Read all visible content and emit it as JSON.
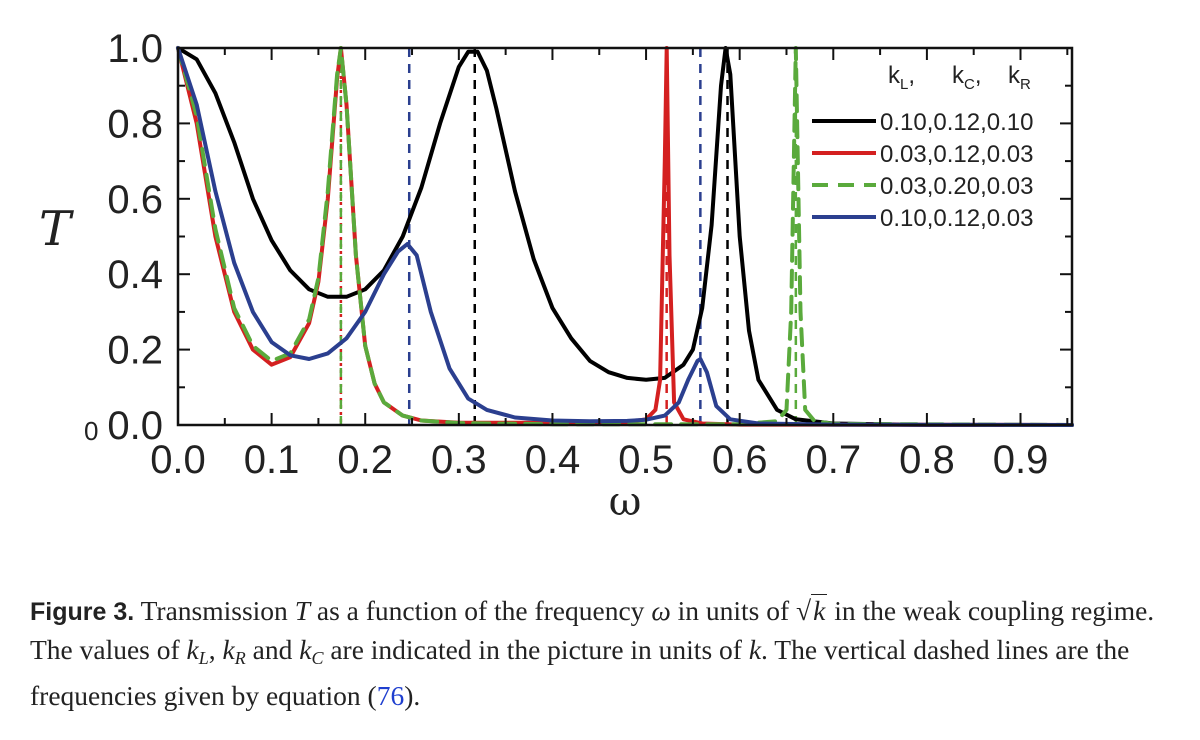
{
  "chart_data": {
    "type": "line",
    "title": "",
    "xlabel": "ω",
    "ylabel": "T",
    "xlim": [
      0.0,
      0.955
    ],
    "ylim": [
      0.0,
      1.0
    ],
    "x_ticks": [
      "0.0",
      "0.1",
      "0.2",
      "0.3",
      "0.4",
      "0.5",
      "0.6",
      "0.7",
      "0.8",
      "0.9"
    ],
    "y_ticks": [
      "0.0",
      "0.2",
      "0.4",
      "0.6",
      "0.8",
      "1.0"
    ],
    "origin_label": "0",
    "legend_header": {
      "kL": "k",
      "kL_sub": "L",
      "kC": "k",
      "kC_sub": "C",
      "kR": "k",
      "kR_sub": "R"
    },
    "legend_position": "top-right",
    "series": [
      {
        "name": "0.10,0.12,0.10",
        "color": "#000000",
        "dash": "solid",
        "x": [
          0.0,
          0.02,
          0.04,
          0.06,
          0.08,
          0.1,
          0.12,
          0.14,
          0.16,
          0.18,
          0.2,
          0.22,
          0.24,
          0.26,
          0.28,
          0.3,
          0.31,
          0.32,
          0.33,
          0.34,
          0.36,
          0.38,
          0.4,
          0.42,
          0.44,
          0.46,
          0.48,
          0.5,
          0.52,
          0.54,
          0.55,
          0.56,
          0.57,
          0.58,
          0.585,
          0.59,
          0.6,
          0.61,
          0.62,
          0.64,
          0.66,
          0.7,
          0.8,
          0.955
        ],
        "y": [
          1.0,
          0.97,
          0.88,
          0.75,
          0.6,
          0.49,
          0.41,
          0.36,
          0.34,
          0.34,
          0.36,
          0.41,
          0.5,
          0.63,
          0.8,
          0.95,
          0.99,
          0.99,
          0.94,
          0.84,
          0.62,
          0.44,
          0.31,
          0.23,
          0.17,
          0.14,
          0.125,
          0.12,
          0.125,
          0.16,
          0.2,
          0.31,
          0.53,
          0.9,
          1.0,
          0.93,
          0.5,
          0.25,
          0.12,
          0.04,
          0.015,
          0.004,
          0.0,
          0.0
        ]
      },
      {
        "name": "0.03,0.12,0.03",
        "color": "#d42020",
        "dash": "solid",
        "x": [
          0.0,
          0.02,
          0.04,
          0.06,
          0.08,
          0.1,
          0.12,
          0.14,
          0.15,
          0.16,
          0.17,
          0.174,
          0.18,
          0.19,
          0.2,
          0.21,
          0.22,
          0.24,
          0.26,
          0.3,
          0.4,
          0.48,
          0.5,
          0.51,
          0.515,
          0.52,
          0.522,
          0.525,
          0.53,
          0.54,
          0.56,
          0.6,
          0.955
        ],
        "y": [
          1.0,
          0.8,
          0.5,
          0.3,
          0.2,
          0.16,
          0.18,
          0.27,
          0.38,
          0.6,
          0.92,
          1.0,
          0.85,
          0.45,
          0.21,
          0.11,
          0.06,
          0.025,
          0.012,
          0.006,
          0.006,
          0.008,
          0.015,
          0.04,
          0.12,
          0.7,
          1.0,
          0.45,
          0.06,
          0.015,
          0.004,
          0.001,
          0.0
        ]
      },
      {
        "name": "0.03,0.20,0.03",
        "color": "#5aaa3c",
        "dash": "dashed",
        "x": [
          0.0,
          0.02,
          0.04,
          0.06,
          0.08,
          0.1,
          0.12,
          0.14,
          0.15,
          0.16,
          0.17,
          0.174,
          0.18,
          0.19,
          0.2,
          0.21,
          0.22,
          0.24,
          0.26,
          0.3,
          0.4,
          0.6,
          0.64,
          0.65,
          0.655,
          0.66,
          0.665,
          0.67,
          0.68,
          0.7,
          0.955
        ],
        "y": [
          1.0,
          0.82,
          0.52,
          0.31,
          0.21,
          0.17,
          0.19,
          0.28,
          0.39,
          0.62,
          0.93,
          1.0,
          0.85,
          0.45,
          0.21,
          0.11,
          0.06,
          0.025,
          0.012,
          0.005,
          0.002,
          0.002,
          0.01,
          0.04,
          0.3,
          1.0,
          0.3,
          0.04,
          0.01,
          0.003,
          0.0
        ]
      },
      {
        "name": "0.10,0.12,0.03",
        "color": "#2b3f8f",
        "dash": "solid",
        "x": [
          0.0,
          0.02,
          0.04,
          0.06,
          0.08,
          0.1,
          0.12,
          0.14,
          0.16,
          0.18,
          0.2,
          0.22,
          0.235,
          0.245,
          0.255,
          0.27,
          0.29,
          0.31,
          0.33,
          0.36,
          0.4,
          0.44,
          0.48,
          0.5,
          0.52,
          0.535,
          0.545,
          0.555,
          0.558,
          0.565,
          0.575,
          0.59,
          0.62,
          0.7,
          0.955
        ],
        "y": [
          1.0,
          0.85,
          0.62,
          0.43,
          0.3,
          0.22,
          0.185,
          0.175,
          0.19,
          0.23,
          0.3,
          0.4,
          0.46,
          0.48,
          0.45,
          0.3,
          0.15,
          0.07,
          0.04,
          0.02,
          0.012,
          0.01,
          0.011,
          0.014,
          0.025,
          0.06,
          0.12,
          0.17,
          0.175,
          0.14,
          0.05,
          0.015,
          0.004,
          0.001,
          0.0
        ]
      }
    ],
    "vlines": [
      {
        "x": 0.174,
        "color": "#d42020",
        "style": "dotted"
      },
      {
        "x": 0.174,
        "color": "#5aaa3c",
        "style": "dashed"
      },
      {
        "x": 0.247,
        "color": "#2b3f8f",
        "style": "dashed"
      },
      {
        "x": 0.317,
        "color": "#000000",
        "style": "dashed"
      },
      {
        "x": 0.522,
        "color": "#d42020",
        "style": "dashed"
      },
      {
        "x": 0.558,
        "color": "#2b3f8f",
        "style": "dashed"
      },
      {
        "x": 0.587,
        "color": "#000000",
        "style": "dashed"
      },
      {
        "x": 0.66,
        "color": "#5aaa3c",
        "style": "dashed"
      }
    ]
  },
  "caption": {
    "label": "Figure 3.",
    "part1": "Transmission",
    "symbol_T": "T",
    "part2": "as a function of the frequency",
    "symbol_omega": "ω",
    "part3": "in units of",
    "sqrt_sign": "√",
    "sqrt_arg": "k",
    "part4": "in the weak coupling regime. The values of",
    "kL": "k",
    "kL_sub": "L",
    "comma": ",",
    "kR": "k",
    "kR_sub": "R",
    "and": "and",
    "kC": "k",
    "kC_sub": "C",
    "part5": "are indicated in the picture in units of",
    "k_unit": "k",
    "part6": ". The vertical dashed lines are the frequencies given by equation",
    "paren_open": "(",
    "eq_ref": "76",
    "paren_close": ")."
  }
}
